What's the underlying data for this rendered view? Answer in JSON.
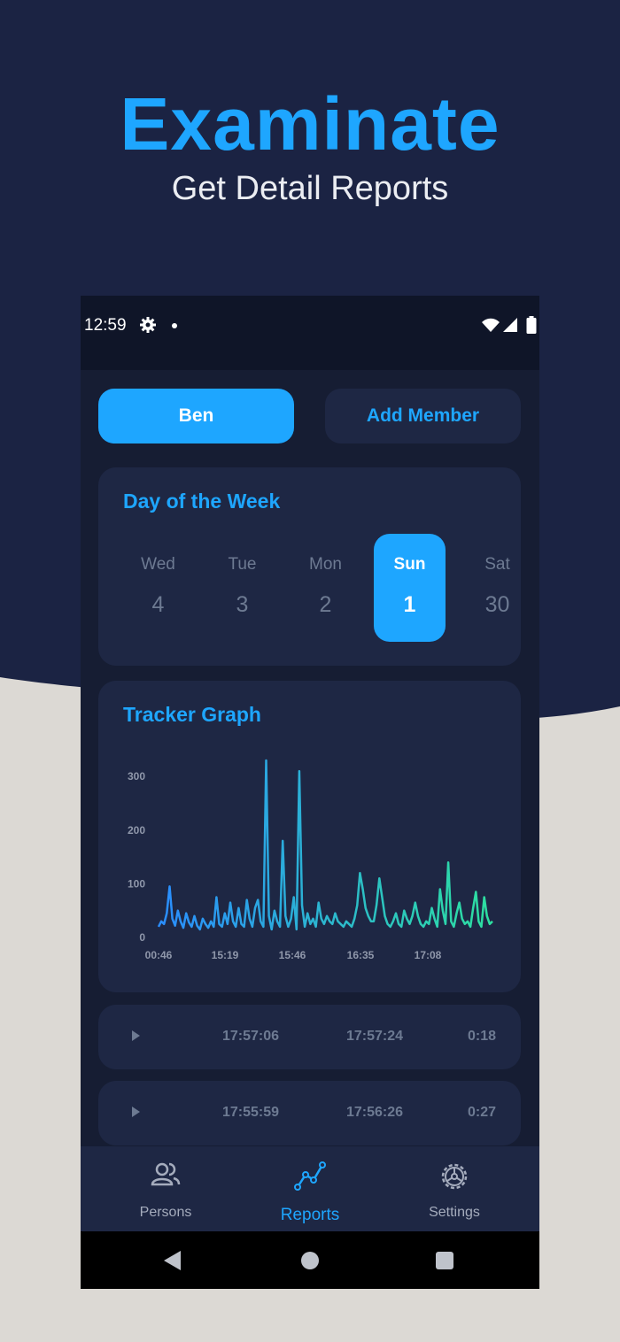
{
  "promo": {
    "title": "Examinate",
    "subtitle": "Get Detail Reports"
  },
  "status_bar": {
    "time": "12:59",
    "icons": [
      "gear-icon",
      "dot-icon",
      "wifi-icon",
      "signal-icon",
      "battery-icon"
    ]
  },
  "members": {
    "selected_label": "Ben",
    "add_label": "Add Member"
  },
  "week": {
    "title": "Day of the Week",
    "days": [
      {
        "name": "Wed",
        "num": "4",
        "selected": false
      },
      {
        "name": "Tue",
        "num": "3",
        "selected": false
      },
      {
        "name": "Mon",
        "num": "2",
        "selected": false
      },
      {
        "name": "Sun",
        "num": "1",
        "selected": true
      },
      {
        "name": "Sat",
        "num": "30",
        "selected": false
      }
    ]
  },
  "graph": {
    "title": "Tracker Graph"
  },
  "chart_data": {
    "type": "line",
    "yticks": [
      "0",
      "100",
      "200",
      "300"
    ],
    "xticks": [
      "00:46",
      "15:19",
      "15:46",
      "16:35",
      "17:08"
    ],
    "ylim": [
      0,
      330
    ],
    "values": [
      20,
      30,
      25,
      45,
      95,
      35,
      22,
      50,
      30,
      18,
      45,
      28,
      20,
      40,
      22,
      15,
      35,
      25,
      18,
      30,
      20,
      75,
      25,
      20,
      45,
      25,
      65,
      30,
      20,
      55,
      25,
      20,
      70,
      35,
      20,
      55,
      70,
      30,
      20,
      330,
      40,
      15,
      50,
      30,
      20,
      180,
      40,
      20,
      35,
      75,
      15,
      310,
      60,
      20,
      45,
      25,
      35,
      20,
      65,
      35,
      25,
      40,
      30,
      25,
      45,
      30,
      25,
      20,
      30,
      25,
      20,
      35,
      60,
      120,
      90,
      55,
      40,
      30,
      30,
      60,
      110,
      75,
      40,
      25,
      20,
      30,
      45,
      25,
      20,
      50,
      35,
      25,
      40,
      65,
      40,
      25,
      20,
      30,
      25,
      55,
      35,
      20,
      90,
      50,
      25,
      140,
      30,
      20,
      45,
      65,
      35,
      25,
      30,
      20,
      55,
      85,
      30,
      20,
      75,
      40,
      25,
      30
    ]
  },
  "sessions": [
    {
      "start": "17:57:06",
      "end": "17:57:24",
      "duration": "0:18"
    },
    {
      "start": "17:55:59",
      "end": "17:56:26",
      "duration": "0:27"
    }
  ],
  "nav": {
    "persons": "Persons",
    "reports": "Reports",
    "settings": "Settings",
    "active": "reports"
  },
  "colors": {
    "accent": "#1ea6ff",
    "dark_bg": "#1b2343",
    "card": "#1e2744",
    "line_start": "#2a8dff",
    "line_end": "#2de0a0"
  }
}
